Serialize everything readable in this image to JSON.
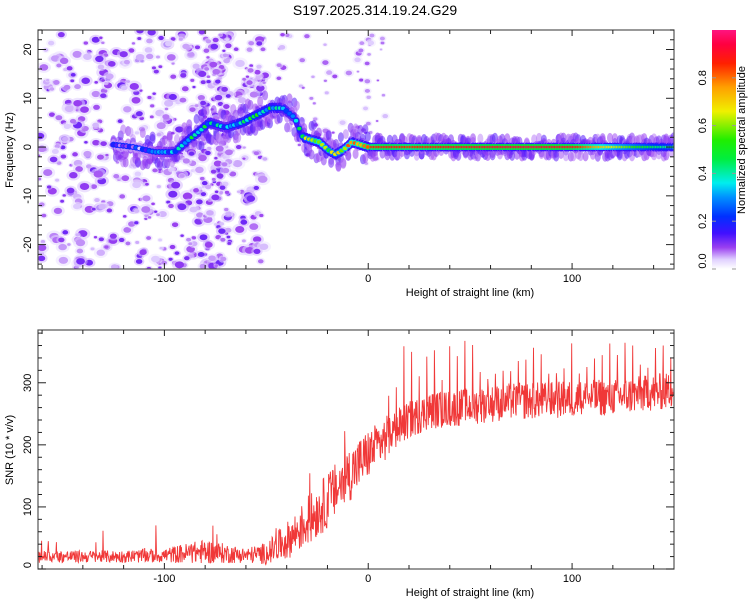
{
  "figure_title": "S197.2025.314.19.24.G29",
  "chart_data": [
    {
      "type": "heatmap",
      "title": "S197.2025.314.19.24.G29",
      "xlabel": "Height of straight line (km)",
      "ylabel": "Frequency (Hz)",
      "xlim": [
        -162,
        150
      ],
      "ylim": [
        -25,
        24
      ],
      "xticks": [
        -100,
        0,
        100
      ],
      "yticks": [
        -20,
        -10,
        0,
        10,
        20
      ],
      "grid": false,
      "colorbar": {
        "label": "Normalized spectral amplitude",
        "range": [
          0.0,
          1.0
        ],
        "ticks": [
          0.0,
          0.2,
          0.4,
          0.6,
          0.8
        ],
        "tick_labels": [
          "0.0",
          "0.2",
          "0.4",
          "0.6",
          "0.8"
        ],
        "colormap": [
          "#ffffff",
          "#e6d8ff",
          "#8a2be2",
          "#0000ff",
          "#00e5ff",
          "#00e000",
          "#ffff00",
          "#ff8000",
          "#ff0000",
          "#ff1493"
        ],
        "position": "right"
      },
      "ridge": {
        "description": "Signal frequency ridge vs height",
        "x": [
          -125,
          -115,
          -105,
          -95,
          -88,
          -82,
          -78,
          -70,
          -62,
          -55,
          -48,
          -42,
          -36,
          -32,
          -28,
          -24,
          -20,
          -16,
          -12,
          -8,
          -4,
          0,
          10,
          20,
          40,
          60,
          80,
          100,
          120,
          140,
          150
        ],
        "y": [
          0.5,
          0,
          -1,
          -1,
          1.5,
          3.5,
          5,
          4,
          5,
          6.5,
          8,
          8,
          6,
          2,
          1.5,
          1,
          -0.5,
          -1.5,
          -0.5,
          1,
          0.5,
          0,
          0,
          0,
          0,
          0,
          0,
          0,
          0,
          0,
          0
        ],
        "amplitude": [
          0.15,
          0.15,
          0.2,
          0.3,
          0.4,
          0.4,
          0.35,
          0.3,
          0.4,
          0.45,
          0.4,
          0.35,
          0.3,
          0.5,
          0.6,
          0.7,
          0.6,
          0.55,
          0.65,
          0.75,
          0.8,
          0.85,
          0.9,
          0.85,
          0.9,
          0.92,
          0.95,
          0.9,
          0.65,
          0.45,
          0.4
        ]
      },
      "noise_region": {
        "x_from": -162,
        "x_to": -60,
        "description": "Scattered low-amplitude noise"
      }
    },
    {
      "type": "line",
      "xlabel": "Height of straight line (km)",
      "ylabel": "SNR (10 * v/v)",
      "xlim": [
        -162,
        150
      ],
      "ylim": [
        0,
        385
      ],
      "xticks": [
        -100,
        0,
        100
      ],
      "yticks": [
        0,
        100,
        200,
        300
      ],
      "grid": false,
      "series": [
        {
          "name": "SNR",
          "color": "#ee2222",
          "trend_x": [
            -162,
            -120,
            -100,
            -80,
            -60,
            -50,
            -40,
            -30,
            -20,
            -10,
            0,
            10,
            20,
            30,
            50,
            70,
            90,
            110,
            130,
            150
          ],
          "trend_y": [
            20,
            20,
            22,
            28,
            22,
            25,
            45,
            75,
            110,
            150,
            185,
            215,
            240,
            255,
            262,
            270,
            272,
            275,
            280,
            288
          ],
          "noise_amplitude": [
            10,
            10,
            12,
            20,
            12,
            18,
            30,
            40,
            45,
            45,
            40,
            35,
            30,
            30,
            30,
            30,
            30,
            30,
            30,
            30
          ],
          "spike_max": 370
        }
      ]
    }
  ]
}
